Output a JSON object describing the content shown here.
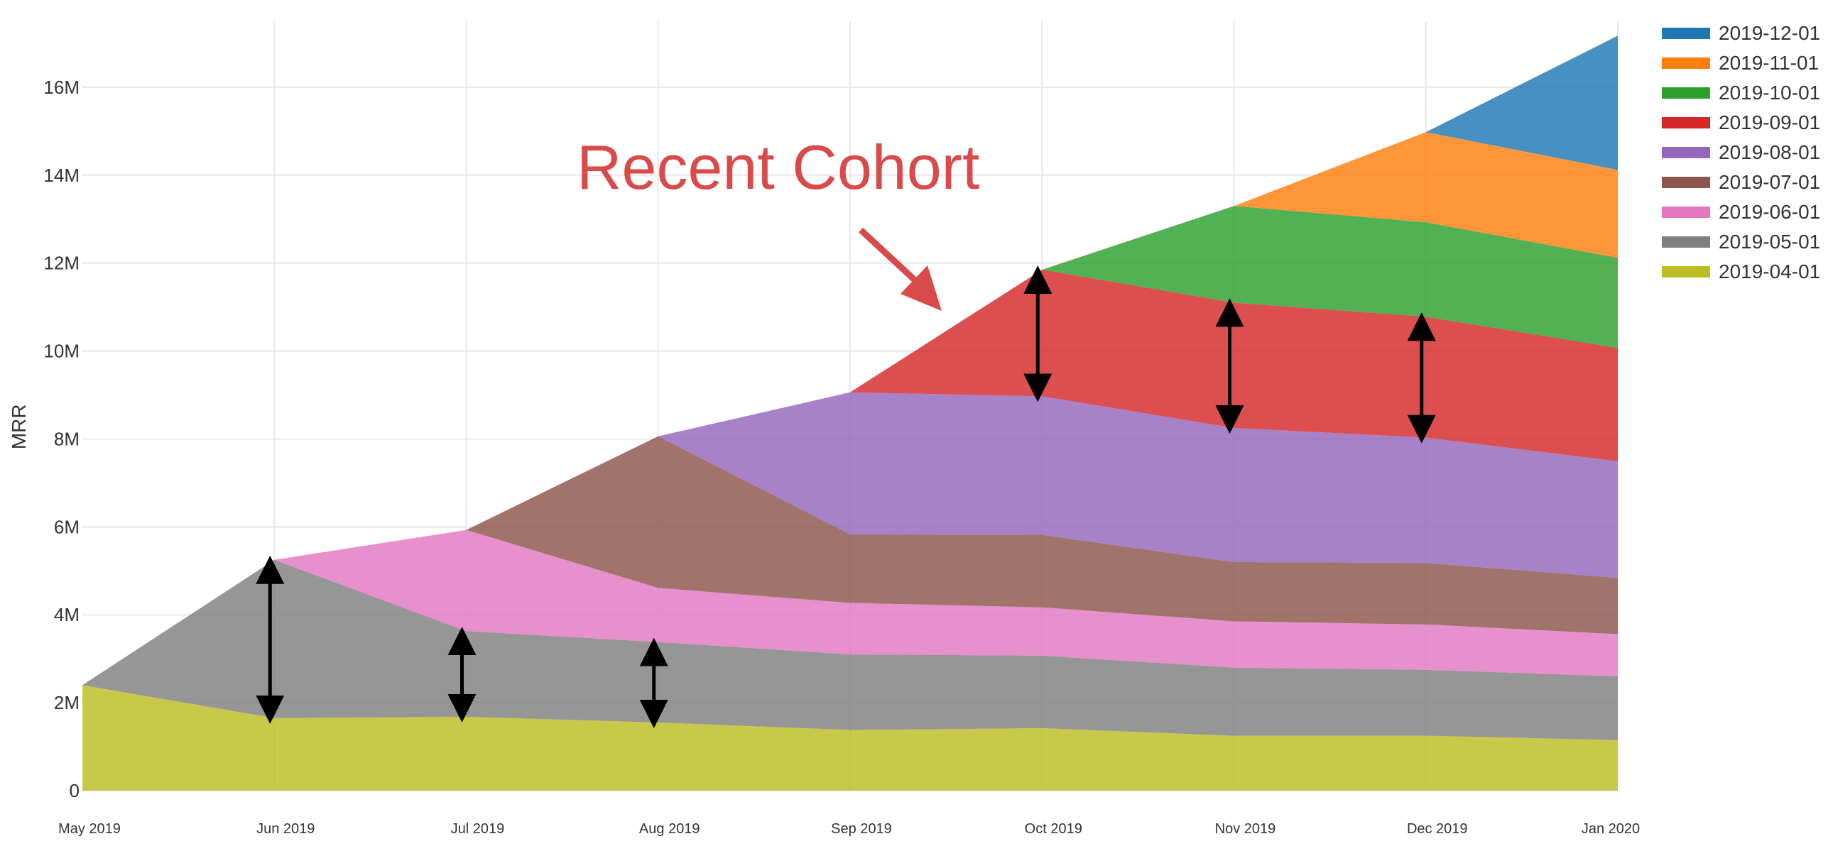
{
  "chart_data": {
    "type": "area",
    "stacked": true,
    "title": "",
    "xlabel": "",
    "ylabel": "MRR",
    "x": [
      "May 2019",
      "Jun 2019",
      "Jul 2019",
      "Aug 2019",
      "Sep 2019",
      "Oct 2019",
      "Nov 2019",
      "Dec 2019",
      "Jan 2020"
    ],
    "ylim": [
      0,
      17500000
    ],
    "yticks": [
      0,
      2000000,
      4000000,
      6000000,
      8000000,
      10000000,
      12000000,
      14000000,
      16000000
    ],
    "ytick_labels": [
      "0",
      "2M",
      "4M",
      "6M",
      "8M",
      "10M",
      "12M",
      "14M",
      "16M"
    ],
    "grid": true,
    "legend_position": "top-right",
    "series": [
      {
        "name": "2019-04-01",
        "color": "#bcbd22",
        "values": [
          2400000,
          1650000,
          1680000,
          1550000,
          1380000,
          1420000,
          1250000,
          1250000,
          1150000
        ]
      },
      {
        "name": "2019-05-01",
        "color": "#7f7f7f",
        "values": [
          null,
          3600000,
          1950000,
          1830000,
          1720000,
          1650000,
          1550000,
          1500000,
          1450000
        ]
      },
      {
        "name": "2019-06-01",
        "color": "#e377c2",
        "values": [
          null,
          null,
          2300000,
          1230000,
          1170000,
          1100000,
          1050000,
          1030000,
          960000
        ]
      },
      {
        "name": "2019-07-01",
        "color": "#8c564b",
        "values": [
          null,
          null,
          null,
          3450000,
          1560000,
          1650000,
          1350000,
          1400000,
          1280000
        ]
      },
      {
        "name": "2019-08-01",
        "color": "#9467bd",
        "values": [
          null,
          null,
          null,
          null,
          3230000,
          3150000,
          3050000,
          2850000,
          2650000
        ]
      },
      {
        "name": "2019-09-01",
        "color": "#d62728",
        "values": [
          null,
          null,
          null,
          null,
          null,
          2880000,
          2850000,
          2750000,
          2580000
        ]
      },
      {
        "name": "2019-10-01",
        "color": "#2ca02c",
        "values": [
          null,
          null,
          null,
          null,
          null,
          null,
          2200000,
          2150000,
          2050000
        ]
      },
      {
        "name": "2019-11-01",
        "color": "#ff7f0e",
        "values": [
          null,
          null,
          null,
          null,
          null,
          null,
          null,
          2050000,
          2000000
        ]
      },
      {
        "name": "2019-12-01",
        "color": "#1f77b4",
        "values": [
          null,
          null,
          null,
          null,
          null,
          null,
          null,
          null,
          3050000
        ]
      }
    ],
    "annotations": [
      {
        "text": "Recent Cohort",
        "color": "#d94a4a"
      }
    ]
  }
}
